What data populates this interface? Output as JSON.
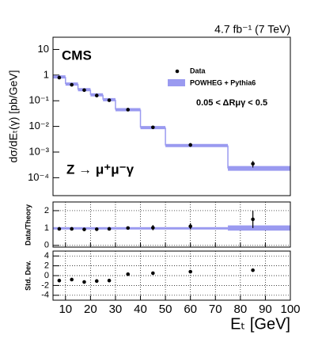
{
  "chart_data": [
    {
      "type": "histogram",
      "title": "4.7 fb⁻¹ (7 TeV)",
      "ylabel": "dσ/dEₜ(γ) [pb/GeV]",
      "annotations": [
        "CMS",
        "0.05 < ΔRμγ < 0.5",
        "Z → μ⁺μ⁻γ"
      ],
      "bins": [
        5,
        10,
        15,
        20,
        25,
        30,
        40,
        50,
        75,
        100
      ],
      "series": [
        {
          "name": "POWHEG + Pythia6",
          "color": "#9a9af0",
          "values": [
            0.85,
            0.45,
            0.27,
            0.17,
            0.11,
            0.045,
            0.009,
            0.0018,
            0.00023
          ]
        }
      ],
      "points": {
        "name": "Data",
        "color": "#000000",
        "x": [
          7.5,
          12.5,
          17.5,
          22.5,
          27.5,
          35,
          45,
          60,
          85
        ],
        "values": [
          0.8,
          0.42,
          0.26,
          0.16,
          0.105,
          0.045,
          0.0092,
          0.0019,
          0.00035
        ],
        "errors": [
          0.03,
          0.02,
          0.01,
          0.008,
          0.005,
          0.003,
          0.001,
          0.0003,
          0.0001
        ]
      },
      "xlim": [
        5,
        100
      ],
      "ylim": [
        2e-05,
        30
      ],
      "log": true,
      "yticks": [
        {
          "value": 0.0001,
          "label": "10⁻⁴"
        },
        {
          "value": 0.001,
          "label": "10⁻³"
        },
        {
          "value": 0.01,
          "label": "10⁻²"
        },
        {
          "value": 0.1,
          "label": "10⁻¹"
        },
        1,
        10
      ],
      "legend": "upper right"
    },
    {
      "type": "ratio",
      "ylabel": "Data/Theory",
      "bins": [
        5,
        10,
        15,
        20,
        25,
        30,
        40,
        50,
        75,
        100
      ],
      "band_color": "#9a9af0",
      "band_values": [
        1,
        1,
        1,
        1,
        1,
        1,
        1,
        1,
        1
      ],
      "band_errors": [
        0.05,
        0.05,
        0.05,
        0.05,
        0.05,
        0.05,
        0.05,
        0.05,
        0.15
      ],
      "x": [
        7.5,
        12.5,
        17.5,
        22.5,
        27.5,
        35,
        45,
        60,
        85
      ],
      "values": [
        0.95,
        0.95,
        0.92,
        0.93,
        0.95,
        1.0,
        1.02,
        1.1,
        1.5
      ],
      "errors": [
        0.05,
        0.05,
        0.05,
        0.05,
        0.06,
        0.08,
        0.15,
        0.18,
        0.5
      ],
      "xlim": [
        5,
        100
      ],
      "ylim": [
        -0.1,
        2.5
      ],
      "yticks": [
        0,
        1,
        2
      ],
      "xticks": [
        10,
        20,
        30,
        40,
        50,
        60,
        70,
        80,
        90,
        100
      ],
      "grid": true
    },
    {
      "type": "pull",
      "ylabel": "Std. Dev.",
      "xlabel": "Eₜ [GeV]",
      "x": [
        7.5,
        12.5,
        17.5,
        22.5,
        27.5,
        35,
        45,
        60,
        85
      ],
      "values": [
        -1,
        -0.8,
        -1.3,
        -1.1,
        -1,
        0.3,
        0.5,
        0.8,
        1.1
      ],
      "xlim": [
        5,
        100
      ],
      "ylim": [
        -5,
        5
      ],
      "yticks": [
        -4,
        -2,
        0,
        2,
        4
      ],
      "xticks": [
        10,
        20,
        30,
        40,
        50,
        60,
        70,
        80,
        90,
        100
      ],
      "grid": true
    }
  ]
}
